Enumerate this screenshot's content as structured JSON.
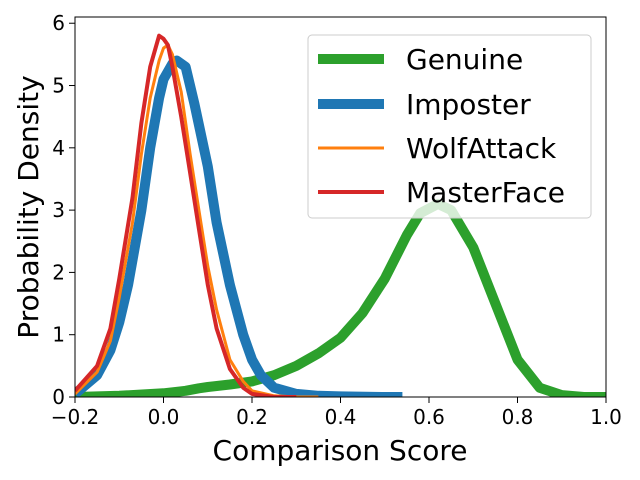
{
  "chart_data": {
    "type": "line",
    "title": "",
    "xlabel": "Comparison Score",
    "ylabel": "Probability Density",
    "xlim": [
      -0.2,
      1.0
    ],
    "ylim": [
      0,
      6.1
    ],
    "xticks": [
      -0.2,
      0.0,
      0.2,
      0.4,
      0.6,
      0.8,
      1.0
    ],
    "xtick_labels": [
      "−0.2",
      "0.0",
      "0.2",
      "0.4",
      "0.6",
      "0.8",
      "1.0"
    ],
    "yticks": [
      0,
      1,
      2,
      3,
      4,
      5,
      6
    ],
    "ytick_labels": [
      "0",
      "1",
      "2",
      "3",
      "4",
      "5",
      "6"
    ],
    "grid": false,
    "legend_position": "top-right",
    "series": [
      {
        "name": "Genuine",
        "color": "#2ca02c",
        "linewidth": 10,
        "x": [
          -0.2,
          -0.1,
          0.0,
          0.05,
          0.08,
          0.1,
          0.15,
          0.2,
          0.25,
          0.3,
          0.35,
          0.4,
          0.45,
          0.5,
          0.55,
          0.58,
          0.62,
          0.65,
          0.7,
          0.75,
          0.8,
          0.85,
          0.9,
          0.95,
          1.0
        ],
        "y": [
          0.0,
          0.02,
          0.06,
          0.1,
          0.14,
          0.16,
          0.2,
          0.25,
          0.35,
          0.5,
          0.7,
          0.95,
          1.35,
          1.9,
          2.6,
          2.95,
          3.1,
          3.0,
          2.4,
          1.5,
          0.6,
          0.15,
          0.03,
          0.0,
          0.0
        ]
      },
      {
        "name": "Imposter",
        "color": "#1f77b4",
        "linewidth": 10,
        "x": [
          -0.2,
          -0.15,
          -0.12,
          -0.1,
          -0.08,
          -0.05,
          -0.03,
          -0.01,
          0.0,
          0.02,
          0.03,
          0.05,
          0.07,
          0.1,
          0.12,
          0.15,
          0.18,
          0.2,
          0.22,
          0.25,
          0.3,
          0.35,
          0.4,
          0.5,
          0.54
        ],
        "y": [
          0.05,
          0.35,
          0.75,
          1.2,
          1.8,
          3.0,
          4.0,
          4.8,
          5.1,
          5.35,
          5.4,
          5.3,
          4.7,
          3.7,
          2.8,
          1.8,
          1.0,
          0.6,
          0.35,
          0.15,
          0.05,
          0.02,
          0.01,
          0.0,
          0.0
        ]
      },
      {
        "name": "WolfAttack",
        "color": "#ff7f0e",
        "linewidth": 3,
        "x": [
          -0.2,
          -0.15,
          -0.12,
          -0.1,
          -0.07,
          -0.05,
          -0.03,
          -0.01,
          0.0,
          0.01,
          0.02,
          0.04,
          0.06,
          0.08,
          0.1,
          0.12,
          0.15,
          0.18,
          0.2,
          0.25,
          0.3,
          0.35
        ],
        "y": [
          0.05,
          0.4,
          0.9,
          1.6,
          2.8,
          3.9,
          4.8,
          5.4,
          5.6,
          5.65,
          5.5,
          4.9,
          3.9,
          3.0,
          2.1,
          1.4,
          0.6,
          0.25,
          0.1,
          0.02,
          0.0,
          0.0
        ]
      },
      {
        "name": "MasterFace",
        "color": "#d62728",
        "linewidth": 4,
        "x": [
          -0.2,
          -0.15,
          -0.12,
          -0.1,
          -0.07,
          -0.05,
          -0.03,
          -0.01,
          0.0,
          0.01,
          0.02,
          0.04,
          0.06,
          0.08,
          0.1,
          0.12,
          0.15,
          0.18,
          0.2,
          0.25,
          0.3
        ],
        "y": [
          0.1,
          0.5,
          1.1,
          1.9,
          3.2,
          4.4,
          5.3,
          5.8,
          5.75,
          5.65,
          5.3,
          4.5,
          3.6,
          2.7,
          1.8,
          1.1,
          0.45,
          0.15,
          0.05,
          0.0,
          0.0
        ]
      }
    ]
  }
}
